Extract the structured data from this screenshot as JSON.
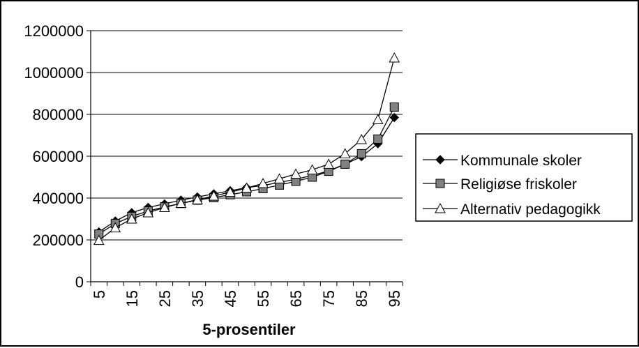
{
  "chart_data": {
    "type": "line",
    "title": "",
    "xlabel": "5-prosentiler",
    "ylabel": "",
    "ylim": [
      0,
      1200000
    ],
    "yticks": [
      0,
      200000,
      400000,
      600000,
      800000,
      1000000,
      1200000
    ],
    "ytick_labels": [
      "0",
      "200000",
      "400000",
      "600000",
      "800000",
      "1000000",
      "1200000"
    ],
    "x": [
      5,
      10,
      15,
      20,
      25,
      30,
      35,
      40,
      45,
      50,
      55,
      60,
      65,
      70,
      75,
      80,
      85,
      90,
      95
    ],
    "xtick_labels": [
      "5",
      "15",
      "25",
      "35",
      "45",
      "55",
      "65",
      "75",
      "85",
      "95"
    ],
    "grid": "horizontal",
    "legend_position": "right",
    "series": [
      {
        "name": "Kommunale skoler",
        "marker": "diamond",
        "color": "#000000",
        "values": [
          238000,
          290000,
          330000,
          355000,
          372000,
          390000,
          405000,
          420000,
          435000,
          450000,
          460000,
          475000,
          490000,
          508000,
          530000,
          562000,
          598000,
          660000,
          785000
        ]
      },
      {
        "name": "Religiøse friskoler",
        "marker": "square",
        "color": "#808080",
        "values": [
          228000,
          278000,
          312000,
          338000,
          358000,
          374000,
          390000,
          402000,
          416000,
          430000,
          445000,
          462000,
          480000,
          500000,
          528000,
          562000,
          612000,
          682000,
          835000
        ]
      },
      {
        "name": "Alternativ pedagogikk",
        "marker": "triangle",
        "color": "#ffffff",
        "values": [
          198000,
          258000,
          300000,
          330000,
          355000,
          375000,
          392000,
          410000,
          428000,
          448000,
          470000,
          492000,
          515000,
          535000,
          562000,
          612000,
          680000,
          775000,
          1070000
        ]
      }
    ]
  }
}
